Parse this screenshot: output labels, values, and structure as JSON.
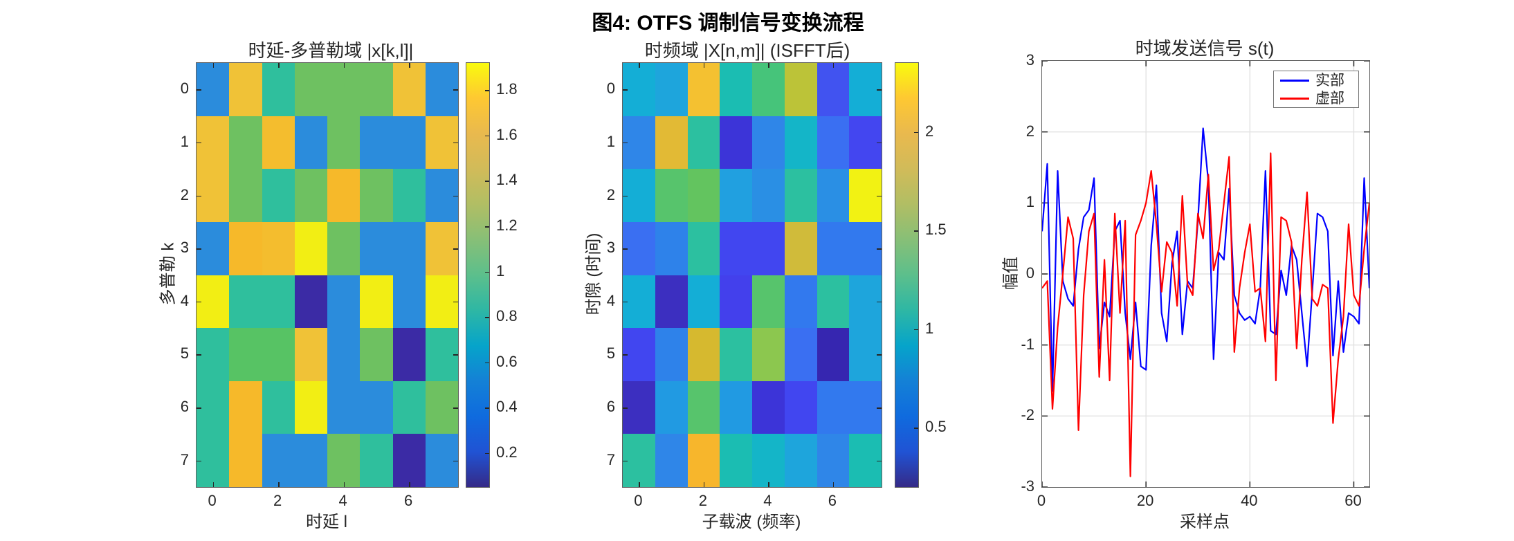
{
  "figure_title": "图4: OTFS 调制信号变换流程",
  "colors": {
    "line_real": "#0000ff",
    "line_imag": "#ff0000",
    "axis": "#262626",
    "spine": "#5f5f5f",
    "grid": "#e2e2e2",
    "legend_border": "#757575",
    "parula_stops": [
      "#352a87",
      "#2053d4",
      "#0f6bde",
      "#1481d6",
      "#06a4ca",
      "#2eb7a4",
      "#5cbf8c",
      "#87bf77",
      "#b1be64",
      "#d1bb59",
      "#e9b94e",
      "#fec832",
      "#f9fb0e"
    ]
  },
  "chart_data": [
    {
      "type": "heatmap",
      "title": "时延-多普勒域 |x[k,l]|",
      "xlabel": "时延 l",
      "ylabel": "多普勒 k",
      "rows": 8,
      "cols": 8,
      "xticks": [
        0,
        2,
        4,
        6
      ],
      "yticks": [
        0,
        1,
        2,
        3,
        4,
        5,
        6,
        7
      ],
      "values": [
        [
          0.55,
          1.5,
          1.0,
          1.2,
          1.2,
          1.2,
          1.5,
          0.55
        ],
        [
          1.5,
          1.2,
          1.55,
          0.55,
          1.2,
          0.55,
          0.55,
          1.5
        ],
        [
          1.5,
          1.2,
          1.0,
          1.2,
          1.6,
          1.2,
          1.0,
          0.55
        ],
        [
          0.55,
          1.6,
          1.55,
          1.85,
          1.2,
          0.55,
          0.55,
          1.5
        ],
        [
          1.9,
          1.0,
          1.0,
          0.1,
          0.55,
          1.85,
          0.55,
          1.85
        ],
        [
          1.0,
          1.15,
          1.15,
          1.5,
          0.55,
          1.2,
          0.1,
          1.0
        ],
        [
          1.0,
          1.6,
          1.0,
          1.85,
          0.55,
          0.55,
          1.05,
          1.2
        ],
        [
          1.0,
          1.6,
          0.55,
          0.55,
          1.2,
          1.0,
          0.1,
          0.55
        ]
      ],
      "cell_colors": [
        [
          "#2b8cdc",
          "#f0c237",
          "#2fbf9d",
          "#6ec161",
          "#6ec161",
          "#6ec161",
          "#f0c237",
          "#2b8cdc"
        ],
        [
          "#f0c237",
          "#6ec161",
          "#f4bd2e",
          "#2b8cdc",
          "#6ec161",
          "#2b8cdc",
          "#2b8cdc",
          "#f0c237"
        ],
        [
          "#f0c237",
          "#6ec161",
          "#2fbf9d",
          "#6ec161",
          "#f6b92a",
          "#6ec161",
          "#2fbf9d",
          "#2b8cdc"
        ],
        [
          "#2b8cdc",
          "#f6b92a",
          "#f4bd2e",
          "#f2ee14",
          "#6ec161",
          "#2b8cdc",
          "#2b8cdc",
          "#f0c237"
        ],
        [
          "#f2ee14",
          "#2fbf9d",
          "#2fbf9d",
          "#3b2ba5",
          "#2b8cdc",
          "#f2ee14",
          "#2b8cdc",
          "#f2ee14"
        ],
        [
          "#2fbf9d",
          "#57c364",
          "#57c364",
          "#f0c237",
          "#2b8cdc",
          "#6ec161",
          "#3b2ba5",
          "#2fbf9d"
        ],
        [
          "#2fbf9d",
          "#f6b92a",
          "#2fbf9d",
          "#f2ee14",
          "#2b8cdc",
          "#2b8cdc",
          "#2fbf9d",
          "#6ec161"
        ],
        [
          "#2fbf9d",
          "#f6b92a",
          "#2b8cdc",
          "#2b8cdc",
          "#6ec161",
          "#2fbf9d",
          "#3b2ba5",
          "#2b8cdc"
        ]
      ],
      "colorbar": {
        "vmin": 0.05,
        "vmax": 1.92,
        "ticks": [
          0.2,
          0.4,
          0.6,
          0.8,
          1,
          1.2,
          1.4,
          1.6,
          1.8
        ]
      }
    },
    {
      "type": "heatmap",
      "title": "时频域 |X[n,m]| (ISFFT后)",
      "xlabel": "子载波 (频率)",
      "ylabel": "时隙 (时间)",
      "rows": 8,
      "cols": 8,
      "xticks": [
        0,
        2,
        4,
        6
      ],
      "yticks": [
        0,
        1,
        2,
        3,
        4,
        5,
        6,
        7
      ],
      "values": [
        [
          1.05,
          0.95,
          2.0,
          1.2,
          1.5,
          1.8,
          0.55,
          1.05
        ],
        [
          0.85,
          1.95,
          1.3,
          0.4,
          0.85,
          1.15,
          0.7,
          0.5
        ],
        [
          1.05,
          1.5,
          1.55,
          0.95,
          0.9,
          1.3,
          0.9,
          2.3
        ],
        [
          0.7,
          0.85,
          1.3,
          0.5,
          0.5,
          1.9,
          0.75,
          0.75
        ],
        [
          1.05,
          0.35,
          1.05,
          0.5,
          1.5,
          0.75,
          1.3,
          0.95
        ],
        [
          0.5,
          0.85,
          1.95,
          1.3,
          1.65,
          0.7,
          0.3,
          0.95
        ],
        [
          0.35,
          0.9,
          1.5,
          0.9,
          0.4,
          0.5,
          0.75,
          0.75
        ],
        [
          1.3,
          0.85,
          2.05,
          1.2,
          1.15,
          0.95,
          0.85,
          1.2
        ]
      ],
      "cell_colors": [
        [
          "#14aed6",
          "#1ea5dc",
          "#f4c131",
          "#1bbdb2",
          "#46c47a",
          "#bcc338",
          "#4153f0",
          "#14aed6"
        ],
        [
          "#2f86e8",
          "#e2ba35",
          "#2cc0a0",
          "#3c34d8",
          "#2f86e8",
          "#14b5c8",
          "#3a6ff2",
          "#4346f0"
        ],
        [
          "#14aed6",
          "#57c46c",
          "#63c45f",
          "#21a0e0",
          "#2a8fe4",
          "#2cc0a0",
          "#2a8fe4",
          "#f2f213"
        ],
        [
          "#3a6ff2",
          "#2e82ea",
          "#2cc0a0",
          "#4146f0",
          "#4146f0",
          "#d0bb3a",
          "#3279ee",
          "#3279ee"
        ],
        [
          "#14aed6",
          "#3c2fc0",
          "#14aed6",
          "#4340ec",
          "#57c46c",
          "#3279ee",
          "#2cc0a0",
          "#1ea5dc"
        ],
        [
          "#4146f0",
          "#2e82ea",
          "#d6b92f",
          "#2cc0a0",
          "#8cc74f",
          "#3a6ff2",
          "#3626b0",
          "#1ea5dc"
        ],
        [
          "#3c2fc0",
          "#219ae2",
          "#57c46c",
          "#219ae2",
          "#3c34d8",
          "#4146f0",
          "#3279ee",
          "#3279ee"
        ],
        [
          "#2cc0a0",
          "#2f86e8",
          "#f7b62c",
          "#1bbdb2",
          "#14b5c8",
          "#1ea5dc",
          "#2f86e8",
          "#1bbdb2"
        ]
      ],
      "colorbar": {
        "vmin": 0.2,
        "vmax": 2.35,
        "ticks": [
          0.5,
          1,
          1.5,
          2
        ]
      }
    },
    {
      "type": "line",
      "title": "时域发送信号 s(t)",
      "xlabel": "采样点",
      "ylabel": "幅值",
      "xlim": [
        0,
        63
      ],
      "ylim": [
        -3,
        3
      ],
      "xticks": [
        0,
        20,
        40,
        60
      ],
      "yticks": [
        -3,
        -2,
        -1,
        0,
        1,
        2,
        3
      ],
      "grid": true,
      "legend_position": "top-right",
      "series": [
        {
          "name": "实部",
          "color": "#0000ff",
          "values": [
            0.6,
            1.55,
            -1.65,
            1.45,
            -0.1,
            -0.35,
            -0.45,
            0.35,
            0.8,
            0.9,
            1.35,
            -1.05,
            -0.4,
            -0.6,
            0.6,
            0.75,
            -0.55,
            -1.2,
            -0.4,
            -1.3,
            -1.35,
            0.4,
            1.25,
            -0.55,
            -0.95,
            0.15,
            0.6,
            -0.85,
            -0.1,
            -0.2,
            0.75,
            2.05,
            1.3,
            -1.2,
            0.3,
            0.2,
            1.2,
            -0.3,
            -0.55,
            -0.65,
            -0.6,
            -0.7,
            -0.2,
            1.45,
            -0.8,
            -0.85,
            0.05,
            -0.3,
            0.4,
            0.2,
            -0.55,
            -1.3,
            -0.25,
            0.85,
            0.8,
            0.6,
            -1.15,
            -0.1,
            -1.1,
            -0.55,
            -0.6,
            -0.7,
            1.35,
            -0.2
          ]
        },
        {
          "name": "虚部",
          "color": "#ff0000",
          "values": [
            -0.2,
            -0.1,
            -1.9,
            -0.75,
            0.0,
            0.8,
            0.5,
            -2.2,
            -0.3,
            0.6,
            0.85,
            -1.45,
            0.2,
            -1.5,
            0.85,
            -0.55,
            0.75,
            -2.85,
            0.55,
            0.75,
            1.0,
            1.45,
            0.7,
            -0.25,
            0.45,
            0.3,
            -0.45,
            1.1,
            -0.15,
            -0.3,
            0.85,
            0.5,
            1.4,
            0.05,
            0.35,
            1.0,
            1.65,
            -1.1,
            -0.2,
            0.3,
            0.7,
            -0.25,
            -0.2,
            -0.95,
            1.7,
            -1.5,
            0.8,
            0.75,
            0.45,
            -1.05,
            0.2,
            1.15,
            -0.35,
            -0.45,
            -0.15,
            -0.2,
            -2.1,
            -1.2,
            -0.6,
            0.7,
            -0.3,
            -0.45,
            0.35,
            1.0
          ]
        }
      ]
    }
  ]
}
